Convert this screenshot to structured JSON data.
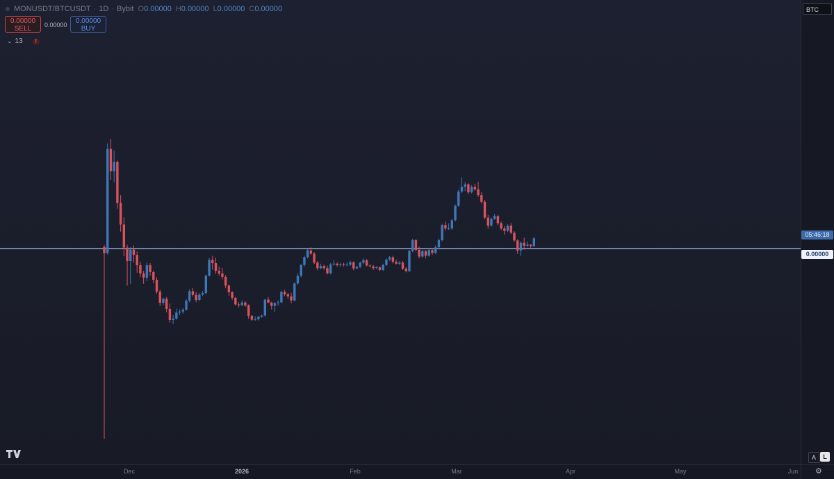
{
  "legend": {
    "symbol": "MONUSDT/BTCUSDT",
    "interval": "1D",
    "exchange": "Bybit",
    "o_label": "O",
    "o_value": "0.00000",
    "h_label": "H",
    "h_value": "0.00000",
    "l_label": "L",
    "l_value": "0.00000",
    "c_label": "C",
    "c_value": "0.00000"
  },
  "trade": {
    "sell_price": "0.00000",
    "sell_label": "SELL",
    "spread": "0.00000",
    "buy_price": "0.00000",
    "buy_label": "BUY"
  },
  "indicators": {
    "count": "13",
    "alert": "!"
  },
  "price_axis": {
    "currency": "BTC",
    "countdown": "05:46:18",
    "last_price": "0.00000"
  },
  "time_axis": [
    "Dec",
    "2026",
    "Feb",
    "Mar",
    "Apr",
    "May",
    "Jun"
  ],
  "footer": {
    "auto_label": "A",
    "log_label": "L"
  },
  "colors": {
    "up": "#3e78b8",
    "down": "#d9535d",
    "price_line": "#a9c8f2",
    "background": "#1a1d28"
  },
  "icons": {
    "logo": "tradingview-logo-icon",
    "settings": "gear-icon",
    "chevron": "chevron-down-icon"
  },
  "chart_data": {
    "type": "candlestick",
    "title": "MONUSDT/BTCUSDT",
    "interval": "1D",
    "y_scale": "relative",
    "y_range": [
      0,
      100
    ],
    "x_axis_labels": [
      "Dec",
      "2026",
      "Feb",
      "Mar",
      "Apr",
      "May",
      "Jun"
    ],
    "last_price_level": 50.85,
    "candles": [
      [
        51.5,
        52.3,
        -21.0,
        49.2
      ],
      [
        49.2,
        90.7,
        48.7,
        88.6
      ],
      [
        88.6,
        92.4,
        76.9,
        80.2
      ],
      [
        80.2,
        88.0,
        76.0,
        83.7
      ],
      [
        83.7,
        84.2,
        66.0,
        68.2
      ],
      [
        68.2,
        71.1,
        57.3,
        60.0
      ],
      [
        60.0,
        62.8,
        48.0,
        51.3
      ],
      [
        51.3,
        52.3,
        36.9,
        46.2
      ],
      [
        46.2,
        51.5,
        37.6,
        50.5
      ],
      [
        50.5,
        52.1,
        45.6,
        48.5
      ],
      [
        48.5,
        49.8,
        41.8,
        44.6
      ],
      [
        44.6,
        46.0,
        40.1,
        41.5
      ],
      [
        41.5,
        42.5,
        37.6,
        39.9
      ],
      [
        39.9,
        45.6,
        38.6,
        44.6
      ],
      [
        44.6,
        45.4,
        40.6,
        42.0
      ],
      [
        42.0,
        42.6,
        37.8,
        39.1
      ],
      [
        39.1,
        40.1,
        33.8,
        34.6
      ],
      [
        34.6,
        35.4,
        29.2,
        30.4
      ],
      [
        30.4,
        32.4,
        29.6,
        31.9
      ],
      [
        31.9,
        32.6,
        26.8,
        28.1
      ],
      [
        28.1,
        30.1,
        22.9,
        23.9
      ],
      [
        23.9,
        25.7,
        22.3,
        24.4
      ],
      [
        24.4,
        28.2,
        24.0,
        26.7
      ],
      [
        26.7,
        28.0,
        25.7,
        27.1
      ],
      [
        27.1,
        28.4,
        26.2,
        27.8
      ],
      [
        27.8,
        31.7,
        27.4,
        31.2
      ],
      [
        31.2,
        35.6,
        30.6,
        34.8
      ],
      [
        34.8,
        36.0,
        32.8,
        33.4
      ],
      [
        33.4,
        34.4,
        30.6,
        31.5
      ],
      [
        31.5,
        34.1,
        31.0,
        33.5
      ],
      [
        33.5,
        34.9,
        33.0,
        34.1
      ],
      [
        34.1,
        41.1,
        33.6,
        40.7
      ],
      [
        40.7,
        47.4,
        40.3,
        46.6
      ],
      [
        46.6,
        48.2,
        42.9,
        45.4
      ],
      [
        45.4,
        47.5,
        41.4,
        42.5
      ],
      [
        42.5,
        44.1,
        40.6,
        41.5
      ],
      [
        41.5,
        43.6,
        39.2,
        40.2
      ],
      [
        40.2,
        40.9,
        35.9,
        36.9
      ],
      [
        36.9,
        37.4,
        33.1,
        34.4
      ],
      [
        34.4,
        34.8,
        31.5,
        32.3
      ],
      [
        32.3,
        32.7,
        29.3,
        29.8
      ],
      [
        29.8,
        30.6,
        28.7,
        29.5
      ],
      [
        29.5,
        31.4,
        29.1,
        30.5
      ],
      [
        30.5,
        31.0,
        28.9,
        29.4
      ],
      [
        29.4,
        29.8,
        24.4,
        25.5
      ],
      [
        25.5,
        25.8,
        23.5,
        24.0
      ],
      [
        24.0,
        25.3,
        23.6,
        24.2
      ],
      [
        24.2,
        25.5,
        23.7,
        25.1
      ],
      [
        25.1,
        25.9,
        24.8,
        25.6
      ],
      [
        25.6,
        31.9,
        25.2,
        31.6
      ],
      [
        31.6,
        32.6,
        30.2,
        30.5
      ],
      [
        30.5,
        30.8,
        27.9,
        29.2
      ],
      [
        29.2,
        30.7,
        26.9,
        30.3
      ],
      [
        30.3,
        31.4,
        29.3,
        30.6
      ],
      [
        30.6,
        35.0,
        30.2,
        34.5
      ],
      [
        34.5,
        35.3,
        32.9,
        33.6
      ],
      [
        33.6,
        34.1,
        31.8,
        32.8
      ],
      [
        32.8,
        34.2,
        30.2,
        31.3
      ],
      [
        31.3,
        38.2,
        30.9,
        37.7
      ],
      [
        37.7,
        41.5,
        37.1,
        40.6
      ],
      [
        40.6,
        45.2,
        40.0,
        44.7
      ],
      [
        44.7,
        48.2,
        44.1,
        47.7
      ],
      [
        47.7,
        50.7,
        47.1,
        50.2
      ],
      [
        50.2,
        51.4,
        48.5,
        49.0
      ],
      [
        49.0,
        49.6,
        45.1,
        45.6
      ],
      [
        45.6,
        46.2,
        42.7,
        43.5
      ],
      [
        43.5,
        45.2,
        43.1,
        44.3
      ],
      [
        44.3,
        44.9,
        42.9,
        43.5
      ],
      [
        43.5,
        44.5,
        41.1,
        41.6
      ],
      [
        41.6,
        45.4,
        41.1,
        44.9
      ],
      [
        44.9,
        46.5,
        44.5,
        45.2
      ],
      [
        45.2,
        45.7,
        44.1,
        44.6
      ],
      [
        44.6,
        45.4,
        44.0,
        44.9
      ],
      [
        44.9,
        45.5,
        44.1,
        44.8
      ],
      [
        44.8,
        45.8,
        44.3,
        44.8
      ],
      [
        44.8,
        46.4,
        44.4,
        45.7
      ],
      [
        45.7,
        46.1,
        42.7,
        43.4
      ],
      [
        43.4,
        44.4,
        43.0,
        44.0
      ],
      [
        44.0,
        45.9,
        43.5,
        45.6
      ],
      [
        45.6,
        47.2,
        45.1,
        46.5
      ],
      [
        46.5,
        46.9,
        44.2,
        44.5
      ],
      [
        44.5,
        44.9,
        43.8,
        44.2
      ],
      [
        44.2,
        44.7,
        42.8,
        43.5
      ],
      [
        43.5,
        44.3,
        43.1,
        43.8
      ],
      [
        43.8,
        44.2,
        42.3,
        42.8
      ],
      [
        42.8,
        45.2,
        42.4,
        44.7
      ],
      [
        44.7,
        47.2,
        44.3,
        46.7
      ],
      [
        46.7,
        48.1,
        46.3,
        47.6
      ],
      [
        47.6,
        48.2,
        45.3,
        45.9
      ],
      [
        45.9,
        46.7,
        44.8,
        45.2
      ],
      [
        45.2,
        46.1,
        44.7,
        45.6
      ],
      [
        45.6,
        46.2,
        42.8,
        43.3
      ],
      [
        43.3,
        43.9,
        41.9,
        42.4
      ],
      [
        42.4,
        50.4,
        42.0,
        50.0
      ],
      [
        50.0,
        54.6,
        49.5,
        54.1
      ],
      [
        54.1,
        54.5,
        49.8,
        50.4
      ],
      [
        50.4,
        51.6,
        47.2,
        47.9
      ],
      [
        47.9,
        50.4,
        47.5,
        49.9
      ],
      [
        49.9,
        50.3,
        47.2,
        48.2
      ],
      [
        48.2,
        50.7,
        47.8,
        50.3
      ],
      [
        50.3,
        51.0,
        48.5,
        49.3
      ],
      [
        49.3,
        52.1,
        48.8,
        51.4
      ],
      [
        51.4,
        54.7,
        50.7,
        54.1
      ],
      [
        54.1,
        60.3,
        53.6,
        59.8
      ],
      [
        59.8,
        61.0,
        57.6,
        58.5
      ],
      [
        58.5,
        60.5,
        58.0,
        58.5
      ],
      [
        58.5,
        62.1,
        58.0,
        61.6
      ],
      [
        61.6,
        67.6,
        61.2,
        67.1
      ],
      [
        67.1,
        73.1,
        66.7,
        72.5
      ],
      [
        72.5,
        77.9,
        71.9,
        74.3
      ],
      [
        74.3,
        76.1,
        72.6,
        75.2
      ],
      [
        75.2,
        75.6,
        71.5,
        72.2
      ],
      [
        72.2,
        74.9,
        71.8,
        74.3
      ],
      [
        74.3,
        75.4,
        72.8,
        73.3
      ],
      [
        73.3,
        76.1,
        70.4,
        71.1
      ],
      [
        71.1,
        72.2,
        68.0,
        68.6
      ],
      [
        68.6,
        69.3,
        62.0,
        62.6
      ],
      [
        62.6,
        63.6,
        58.4,
        59.6
      ],
      [
        59.6,
        62.6,
        59.2,
        62.2
      ],
      [
        62.2,
        64.0,
        61.8,
        63.2
      ],
      [
        63.2,
        63.6,
        59.8,
        60.5
      ],
      [
        60.5,
        61.1,
        57.9,
        58.5
      ],
      [
        58.5,
        59.4,
        56.2,
        57.6
      ],
      [
        57.6,
        60.1,
        57.2,
        59.6
      ],
      [
        59.6,
        60.5,
        56.4,
        56.9
      ],
      [
        56.9,
        57.5,
        53.4,
        54.0
      ],
      [
        54.0,
        54.4,
        48.9,
        50.2
      ],
      [
        50.2,
        53.6,
        48.1,
        53.1
      ],
      [
        53.1,
        55.0,
        50.5,
        52.0
      ],
      [
        52.0,
        53.6,
        51.4,
        52.4
      ],
      [
        52.4,
        52.6,
        51.1,
        51.8
      ],
      [
        51.8,
        55.3,
        51.5,
        54.8
      ]
    ]
  }
}
